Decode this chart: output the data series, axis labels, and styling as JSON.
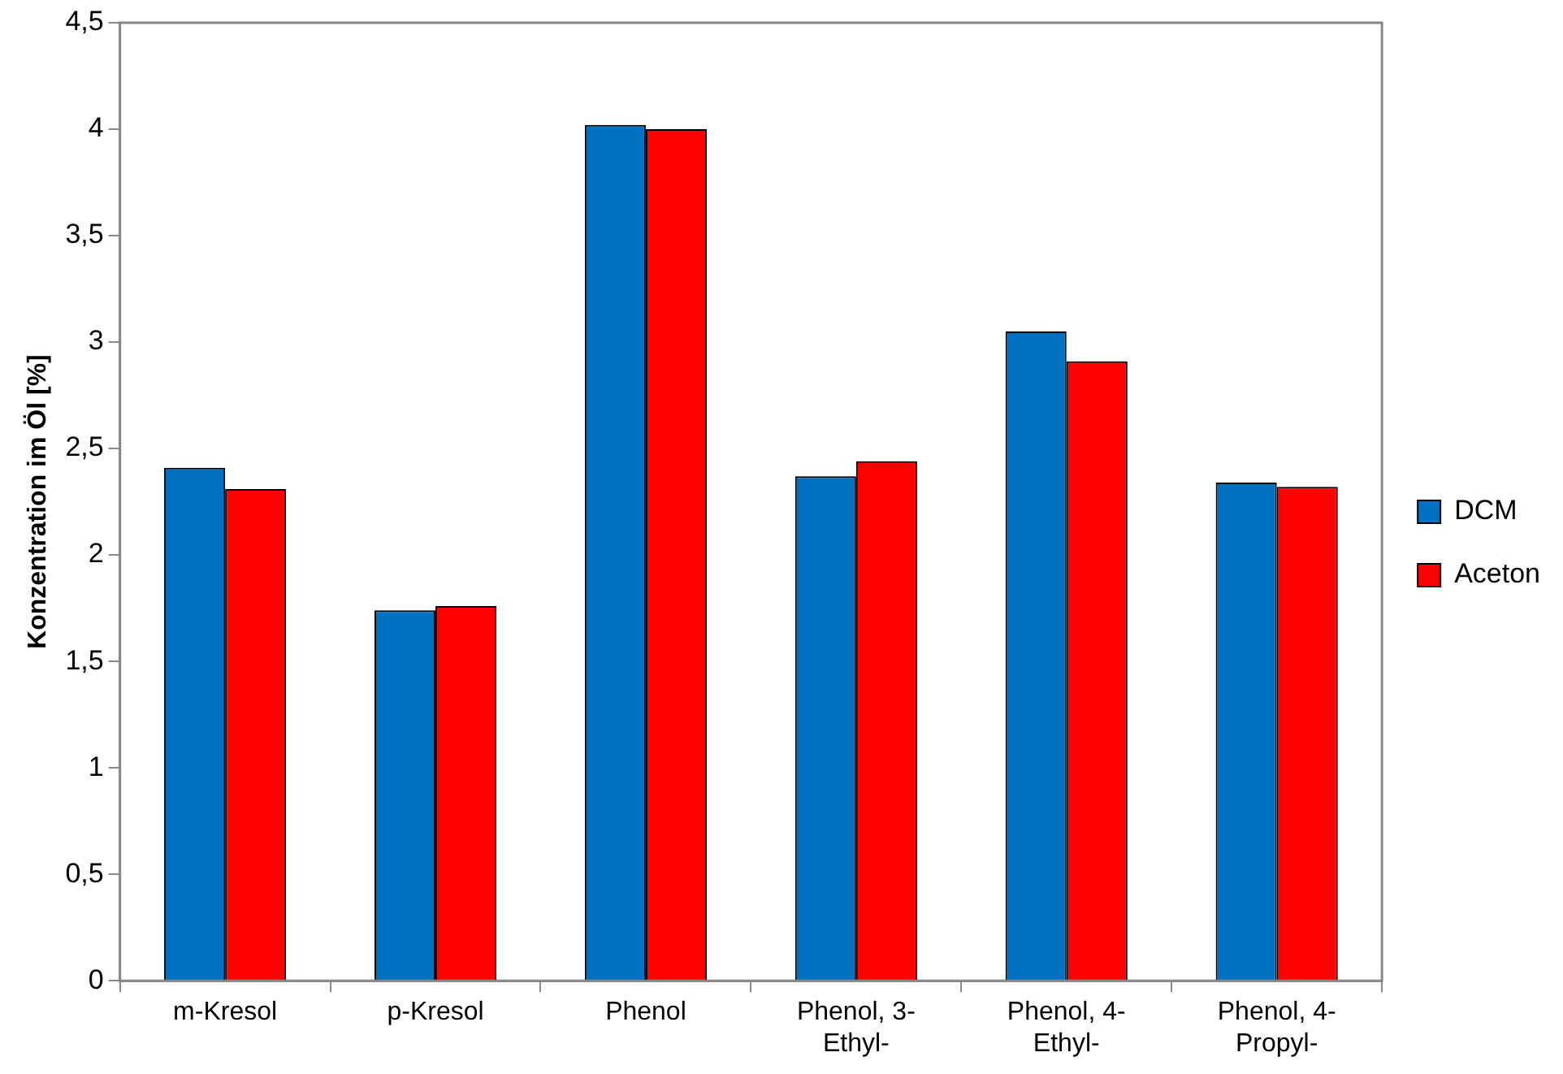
{
  "chart_data": {
    "type": "bar",
    "ylabel": "Konzentration im Öl [%]",
    "categories": [
      "m-Kresol",
      "p-Kresol",
      "Phenol",
      "Phenol, 3-Ethyl-",
      "Phenol, 4-Ethyl-",
      "Phenol, 4-Propyl-"
    ],
    "series": [
      {
        "name": "DCM",
        "color": "#0070c0",
        "values": [
          2.41,
          1.74,
          4.02,
          2.37,
          3.05,
          2.34
        ]
      },
      {
        "name": "Aceton",
        "color": "#ff0000",
        "values": [
          2.31,
          1.76,
          4.0,
          2.44,
          2.91,
          2.32
        ]
      }
    ],
    "ylim": [
      0,
      4.5
    ],
    "yticks": [
      0,
      {
        "value": 0.5,
        "label": "0,5"
      },
      1,
      {
        "value": 1.5,
        "label": "1,5"
      },
      2,
      {
        "value": 2.5,
        "label": "2,5"
      },
      3,
      {
        "value": 3.5,
        "label": "3,5"
      },
      4,
      {
        "value": 4.5,
        "label": "4,5"
      }
    ],
    "grid": false,
    "legend": "right"
  }
}
